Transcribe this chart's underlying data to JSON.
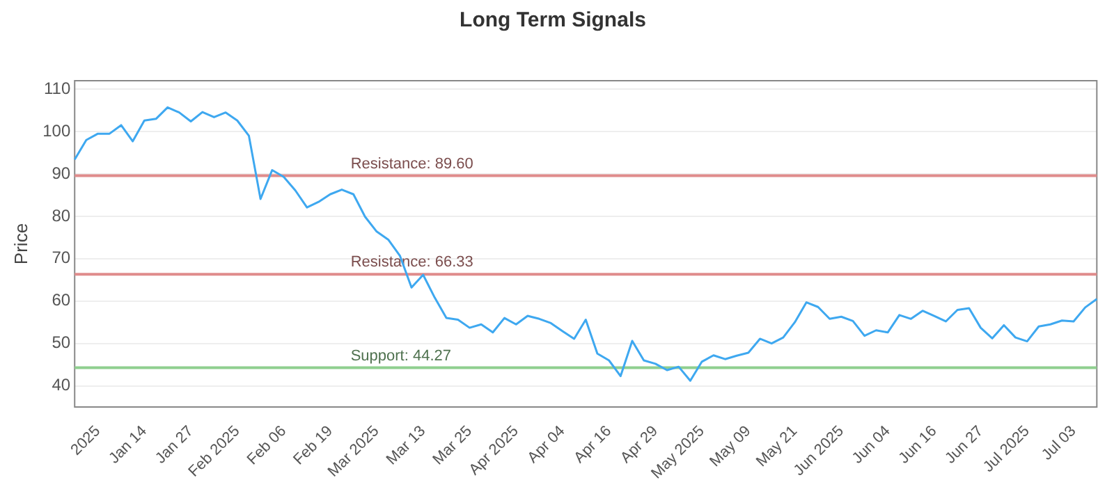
{
  "chart_data": {
    "type": "line",
    "title": "Long Term Signals",
    "ylabel": "Price",
    "categories": [
      null,
      null,
      "2025",
      null,
      null,
      null,
      "Jan 14",
      null,
      null,
      null,
      "Jan 27",
      null,
      null,
      null,
      "Feb 2025",
      null,
      null,
      null,
      "Feb 06",
      null,
      null,
      null,
      "Feb 19",
      null,
      null,
      null,
      "Mar 2025",
      null,
      null,
      null,
      "Mar 13",
      null,
      null,
      null,
      "Mar 25",
      null,
      null,
      null,
      "Apr 2025",
      null,
      null,
      null,
      "Apr 04",
      null,
      null,
      null,
      "Apr 16",
      null,
      null,
      null,
      "Apr 29",
      null,
      null,
      null,
      "May 2025",
      null,
      null,
      null,
      "May 09",
      null,
      null,
      null,
      "May 21",
      null,
      null,
      null,
      "Jun 2025",
      null,
      null,
      null,
      "Jun 04",
      null,
      null,
      null,
      "Jun 16",
      null,
      null,
      null,
      "Jun 27",
      null,
      null,
      null,
      "Jul 2025",
      null,
      null,
      null,
      "Jul 03",
      null,
      null
    ],
    "ylim": [
      35,
      112
    ],
    "yticks": [
      40,
      50,
      60,
      70,
      80,
      90,
      100,
      110
    ],
    "grid": "y",
    "marker": "none",
    "line_style": "solid",
    "ref_lines": [
      {
        "axis": "y",
        "value": 89.6,
        "label": "Resistance: 89.60",
        "color": "#e08c8c"
      },
      {
        "axis": "y",
        "value": 66.33,
        "label": "Resistance: 66.33",
        "color": "#e08c8c"
      },
      {
        "axis": "y",
        "value": 44.27,
        "label": "Support: 44.27",
        "color": "#8fcf8f"
      }
    ],
    "series": [
      {
        "color": "#3ea8f0",
        "values": [
          93.4,
          98.0,
          99.5,
          99.5,
          101.5,
          97.7,
          102.6,
          103.0,
          105.7,
          104.5,
          102.4,
          104.6,
          103.4,
          104.5,
          102.6,
          99.0,
          84.1,
          90.9,
          89.3,
          86.1,
          82.1,
          83.4,
          85.2,
          86.3,
          85.2,
          79.9,
          76.4,
          74.5,
          70.7,
          63.2,
          66.2,
          60.8,
          56.0,
          55.6,
          53.7,
          54.5,
          52.6,
          56.0,
          54.5,
          56.5,
          55.8,
          54.8,
          52.9,
          51.1,
          55.6,
          47.6,
          46.0,
          42.3,
          50.6,
          46.0,
          45.2,
          43.7,
          44.5,
          41.2,
          45.7,
          47.2,
          46.3,
          47.1,
          47.8,
          51.1,
          50.0,
          51.4,
          55.0,
          59.7,
          58.6,
          55.8,
          56.3,
          55.3,
          51.8,
          53.1,
          52.6,
          56.7,
          55.8,
          57.7,
          56.5,
          55.2,
          57.9,
          58.3,
          53.7,
          51.2,
          54.3,
          51.4,
          50.5,
          54.0,
          54.5,
          55.4,
          55.2,
          58.5,
          60.5
        ]
      }
    ]
  }
}
